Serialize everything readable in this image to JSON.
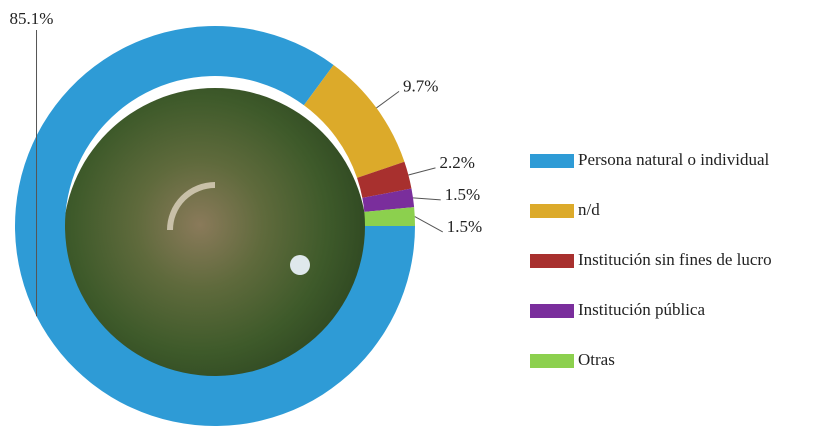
{
  "chart_data": {
    "type": "donut",
    "categories": [
      "Persona natural o individual",
      "n/d",
      "Institución sin fines de lucro",
      "Institución pública",
      "Otras"
    ],
    "values": [
      85.1,
      9.7,
      2.2,
      1.5,
      1.5
    ],
    "value_labels": [
      "85.1%",
      "9.7%",
      "2.2%",
      "1.5%",
      "1.5%"
    ],
    "colors": [
      "#2e9bd6",
      "#dcaa2a",
      "#a8302e",
      "#7a2e9c",
      "#8cd04e"
    ],
    "legend": "right"
  }
}
